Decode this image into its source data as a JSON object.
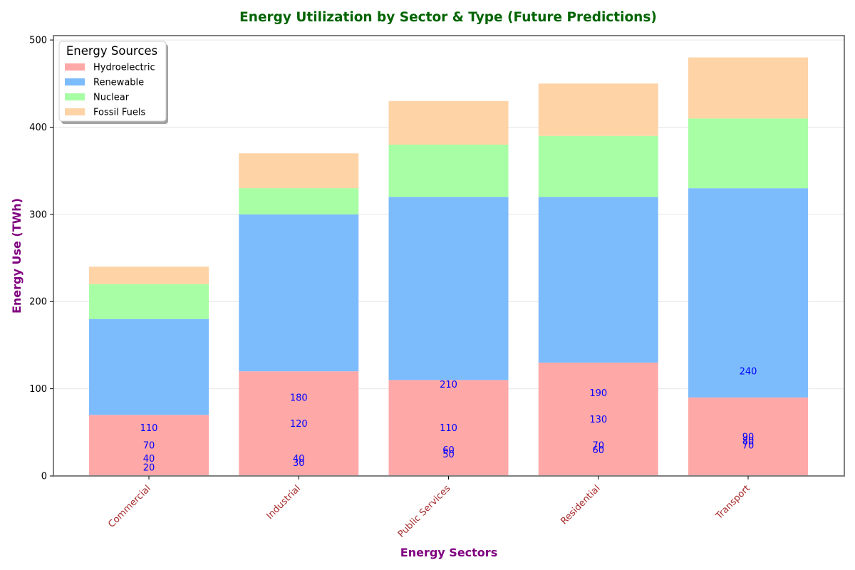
{
  "chart_data": {
    "type": "bar",
    "stacked": true,
    "title": "Energy Utilization by Sector & Type (Future Predictions)",
    "xlabel": "Energy Sectors",
    "ylabel": "Energy Use (TWh)",
    "categories": [
      "Commercial",
      "Industrial",
      "Public Services",
      "Residential",
      "Transport"
    ],
    "series": [
      {
        "name": "Hydroelectric",
        "values": [
          70,
          120,
          110,
          130,
          90
        ],
        "color": "#ffa8a8"
      },
      {
        "name": "Renewable",
        "values": [
          110,
          180,
          210,
          190,
          240
        ],
        "color": "#7dbcfc"
      },
      {
        "name": "Nuclear",
        "values": [
          40,
          30,
          60,
          70,
          80
        ],
        "color": "#a8fea4"
      },
      {
        "name": "Fossil Fuels",
        "values": [
          20,
          40,
          50,
          60,
          70
        ],
        "color": "#fed3a6"
      }
    ],
    "ylim": [
      0,
      505
    ],
    "yticks": [
      0,
      100,
      200,
      300,
      400,
      500
    ],
    "grid": "y",
    "legend": {
      "title": "Energy Sources",
      "placement": "top-left"
    },
    "colors": {
      "title": "#006400",
      "axis_titles": "#800080",
      "xtick_labels": "#a52a2a",
      "bar_labels": "#0000ff"
    }
  }
}
